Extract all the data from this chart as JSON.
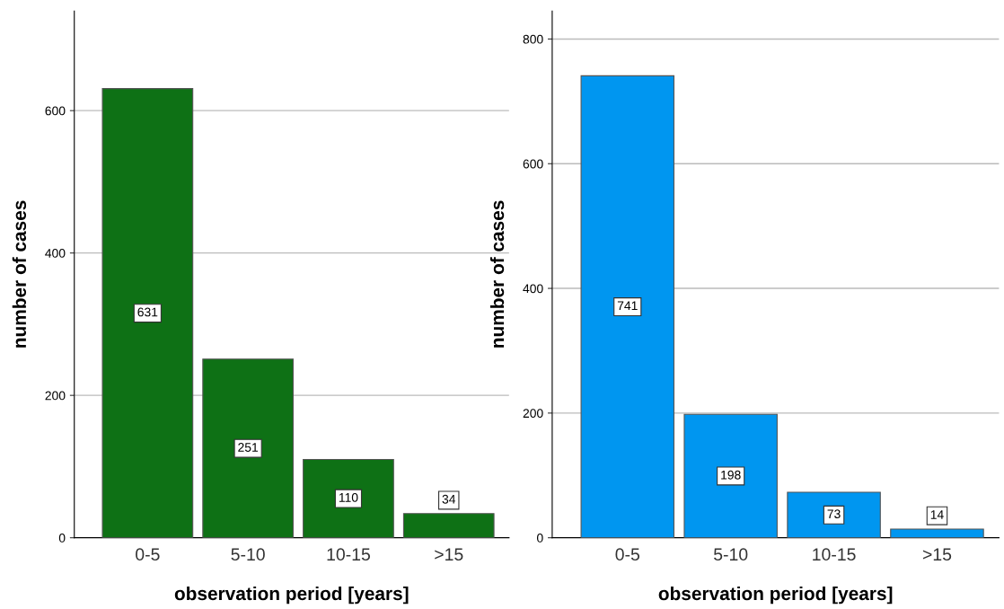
{
  "chart_data": [
    {
      "type": "bar",
      "xlabel": "observation period [years]",
      "ylabel": "number of cases",
      "categories": [
        "0-5",
        "5-10",
        "10-15",
        ">15"
      ],
      "values": [
        631,
        251,
        110,
        34
      ],
      "color": "#0e7115",
      "ylim": [
        0,
        740
      ],
      "yticks": [
        0,
        200,
        400,
        600
      ],
      "grid": "y",
      "data_labels": true
    },
    {
      "type": "bar",
      "xlabel": "observation period [years]",
      "ylabel": "number of cases",
      "categories": [
        "0-5",
        "5-10",
        "10-15",
        ">15"
      ],
      "values": [
        741,
        198,
        73,
        14
      ],
      "color": "#0096f0",
      "ylim": [
        0,
        845
      ],
      "yticks": [
        0,
        200,
        400,
        600,
        800
      ],
      "grid": "y",
      "data_labels": true
    }
  ]
}
